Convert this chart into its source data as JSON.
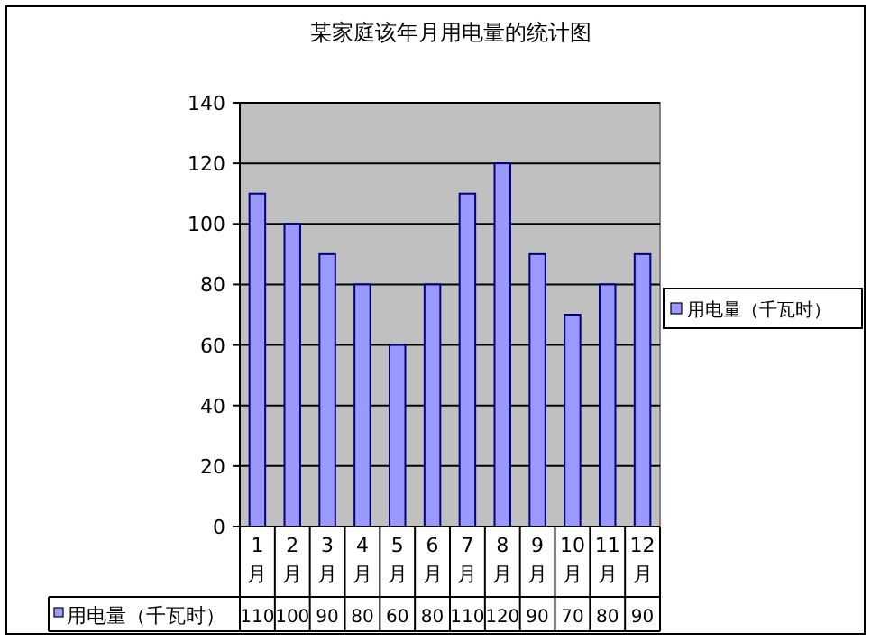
{
  "chart_data": {
    "type": "bar",
    "title": "某家庭该年月用电量的统计图",
    "categories": [
      "1月",
      "2月",
      "3月",
      "4月",
      "5月",
      "6月",
      "7月",
      "8月",
      "9月",
      "10月",
      "11月",
      "12月"
    ],
    "series": [
      {
        "name": "用电量（千瓦时）",
        "color": "#9999ff",
        "values": [
          110,
          100,
          90,
          80,
          60,
          80,
          110,
          120,
          90,
          70,
          80,
          90
        ]
      }
    ],
    "ylim": [
      0,
      140
    ],
    "yticks": [
      0,
      20,
      40,
      60,
      80,
      100,
      120,
      140
    ],
    "grid": "y",
    "legend": "right",
    "data_labels": true
  }
}
